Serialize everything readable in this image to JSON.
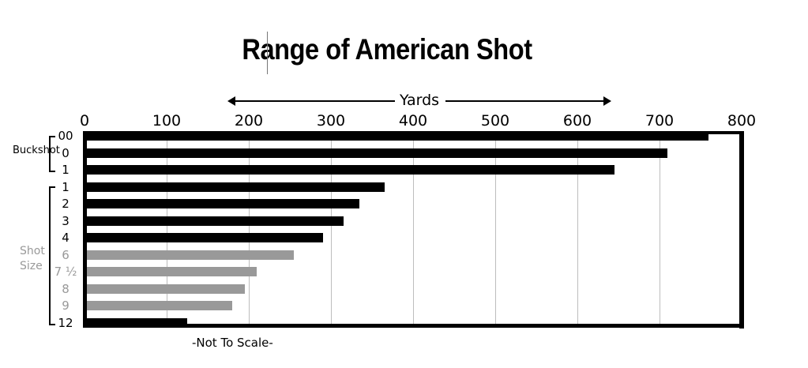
{
  "chart_data": {
    "type": "bar",
    "orientation": "horizontal",
    "title": "Range of American Shot",
    "xlabel": "Yards",
    "ylabel": "",
    "xlim": [
      0,
      800
    ],
    "x_ticks": [
      "0",
      "100",
      "200",
      "300",
      "400",
      "500",
      "600",
      "700",
      "800"
    ],
    "grid": true,
    "groups": [
      {
        "name": "Buckshot",
        "categories": [
          "00",
          "0",
          "1"
        ]
      },
      {
        "name": "Shot Size",
        "categories": [
          "1",
          "2",
          "3",
          "4",
          "6",
          "7 ½",
          "8",
          "9",
          "12"
        ]
      }
    ],
    "categories": [
      "00",
      "0",
      "1",
      "1",
      "2",
      "3",
      "4",
      "6",
      "7 ½",
      "8",
      "9",
      "12"
    ],
    "values": [
      760,
      710,
      645,
      365,
      335,
      315,
      290,
      255,
      210,
      195,
      180,
      125
    ],
    "bar_colors": [
      "#000000",
      "#000000",
      "#000000",
      "#000000",
      "#000000",
      "#000000",
      "#000000",
      "#999999",
      "#999999",
      "#999999",
      "#999999",
      "#000000"
    ],
    "label_colors": [
      "#000000",
      "#000000",
      "#000000",
      "#000000",
      "#000000",
      "#000000",
      "#000000",
      "#999999",
      "#999999",
      "#999999",
      "#999999",
      "#000000"
    ],
    "annotations": [
      "-Not To Scale-"
    ]
  },
  "labels": {
    "title": "Range of American Shot",
    "axis": "Yards",
    "buckshot": "Buckshot",
    "shot_line1": "Shot",
    "shot_line2": "Size",
    "note": "-Not To Scale-"
  }
}
